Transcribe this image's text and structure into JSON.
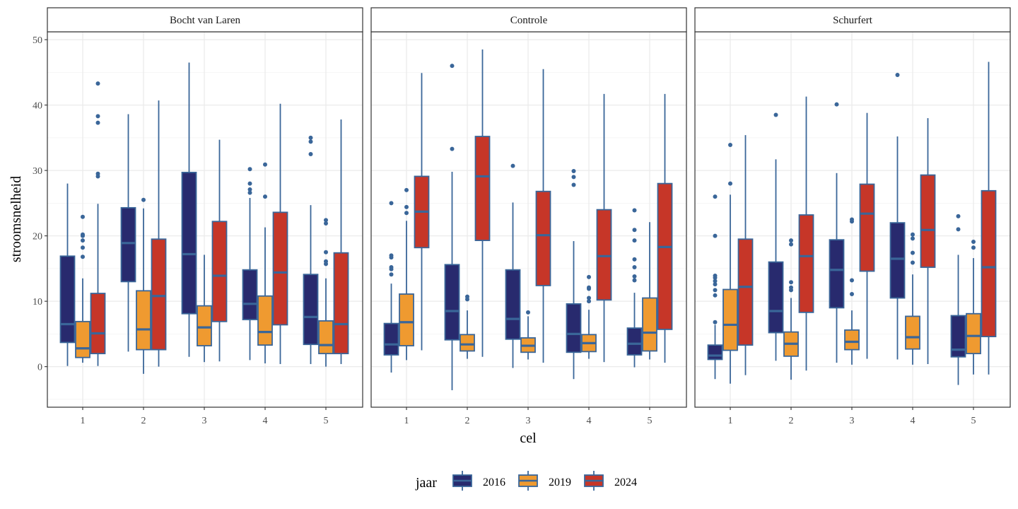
{
  "chart_data": {
    "type": "boxplot",
    "xlabel": "cel",
    "ylabel": "stroomsnelheid",
    "ylim": [
      -6.2,
      51.2
    ],
    "yticks": [
      0,
      10,
      20,
      30,
      40,
      50
    ],
    "xticks": [
      "1",
      "2",
      "3",
      "4",
      "5"
    ],
    "grid": true,
    "legend": {
      "title": "jaar",
      "position": "bottom",
      "entries": [
        "2016",
        "2019",
        "2024"
      ]
    },
    "colors": {
      "2016": "#282a6e",
      "2019": "#ef9a30",
      "2024": "#c63628",
      "outline": "#3a6699"
    },
    "box_format": [
      "whisker_low",
      "q1",
      "median",
      "q3",
      "whisker_high",
      "outliers"
    ],
    "facets": [
      {
        "title": "Bocht van Laren",
        "boxes": {
          "2016": [
            [
              0.1,
              3.7,
              6.5,
              16.9,
              28.0,
              []
            ],
            [
              2.3,
              13.0,
              18.9,
              24.3,
              38.6,
              []
            ],
            [
              1.5,
              8.1,
              17.2,
              29.7,
              46.5,
              []
            ],
            [
              1.0,
              7.2,
              9.6,
              14.8,
              25.8,
              [
                30.2,
                28.0,
                27.1,
                26.6
              ]
            ],
            [
              0.4,
              3.4,
              7.6,
              14.1,
              24.7,
              [
                35.0,
                34.4,
                32.5
              ]
            ]
          ],
          "2019": [
            [
              0.6,
              1.4,
              2.8,
              6.9,
              13.5,
              [
                22.9,
                20.2,
                20.0,
                19.3,
                18.2,
                16.8
              ]
            ],
            [
              -1.1,
              2.6,
              5.7,
              11.6,
              24.2,
              [
                25.5
              ]
            ],
            [
              0.7,
              3.2,
              6.0,
              9.3,
              17.1,
              []
            ],
            [
              0.5,
              3.3,
              5.3,
              10.8,
              21.3,
              [
                30.9,
                26.0
              ]
            ],
            [
              0.0,
              2.0,
              3.3,
              7.0,
              13.5,
              [
                22.4,
                21.9,
                17.5,
                16.1,
                15.7
              ]
            ]
          ],
          "2024": [
            [
              0.1,
              2.0,
              5.1,
              11.2,
              24.9,
              [
                43.3,
                38.3,
                37.3,
                29.5,
                29.1
              ]
            ],
            [
              0.0,
              2.6,
              10.8,
              19.5,
              40.7,
              []
            ],
            [
              0.8,
              6.9,
              13.9,
              22.2,
              34.7,
              []
            ],
            [
              0.4,
              6.4,
              14.4,
              23.6,
              40.2,
              []
            ],
            [
              0.4,
              2.0,
              6.5,
              17.4,
              37.8,
              []
            ]
          ]
        }
      },
      {
        "title": "Controle",
        "boxes": {
          "2016": [
            [
              -0.9,
              1.8,
              3.4,
              6.6,
              12.7,
              [
                25.0,
                17.0,
                16.7,
                15.2,
                14.9,
                14.1
              ]
            ],
            [
              -3.6,
              4.1,
              8.5,
              15.6,
              29.8,
              [
                46.0,
                33.3
              ]
            ],
            [
              -0.2,
              4.2,
              7.3,
              14.8,
              25.1,
              [
                30.7
              ]
            ],
            [
              -1.9,
              2.2,
              5.0,
              9.6,
              19.2,
              [
                29.9,
                29.0,
                27.8
              ]
            ],
            [
              -0.1,
              1.8,
              3.5,
              5.9,
              11.3,
              [
                23.9,
                20.9,
                19.3,
                16.4,
                15.2,
                13.8,
                13.2
              ]
            ]
          ],
          "2019": [
            [
              1.0,
              3.2,
              6.8,
              11.1,
              22.3,
              [
                27.0,
                24.4,
                23.5
              ]
            ],
            [
              1.2,
              2.4,
              3.4,
              4.9,
              8.6,
              [
                10.7,
                10.3
              ]
            ],
            [
              1.1,
              2.2,
              3.2,
              4.4,
              7.7,
              [
                8.3
              ]
            ],
            [
              1.2,
              2.3,
              3.6,
              4.9,
              8.7,
              [
                13.7,
                12.1,
                11.9,
                10.5,
                10.0
              ]
            ],
            [
              1.1,
              2.4,
              5.2,
              10.5,
              22.1,
              []
            ]
          ],
          "2024": [
            [
              2.5,
              18.2,
              23.7,
              29.1,
              44.9,
              []
            ],
            [
              1.5,
              19.3,
              29.1,
              35.2,
              48.5,
              []
            ],
            [
              0.6,
              12.4,
              20.1,
              26.8,
              45.5,
              []
            ],
            [
              0.7,
              10.2,
              16.9,
              24.0,
              41.7,
              []
            ],
            [
              0.6,
              5.7,
              18.3,
              28.0,
              41.7,
              []
            ]
          ]
        }
      },
      {
        "title": "Schurfert",
        "boxes": {
          "2016": [
            [
              -1.9,
              1.1,
              1.7,
              3.3,
              6.4,
              [
                26.0,
                20.0,
                13.9,
                13.6,
                13.1,
                12.6,
                11.7,
                10.9,
                6.8
              ]
            ],
            [
              0.9,
              5.2,
              8.5,
              16.0,
              31.7,
              [
                38.5
              ]
            ],
            [
              0.6,
              9.0,
              14.8,
              19.4,
              29.6,
              [
                40.1
              ]
            ],
            [
              1.1,
              10.5,
              16.5,
              22.0,
              35.2,
              [
                44.6
              ]
            ],
            [
              -2.8,
              1.5,
              2.6,
              7.8,
              17.1,
              [
                23.0,
                21.0
              ]
            ]
          ],
          "2019": [
            [
              -2.6,
              2.5,
              6.4,
              11.8,
              26.3,
              [
                33.9,
                28.0
              ]
            ],
            [
              -2.0,
              1.6,
              3.5,
              5.3,
              10.5,
              [
                19.3,
                18.7,
                12.9,
                12.1,
                11.7
              ]
            ],
            [
              0.3,
              2.6,
              3.8,
              5.6,
              8.6,
              [
                22.5,
                22.2,
                13.2,
                11.1
              ]
            ],
            [
              0.3,
              2.7,
              4.5,
              7.7,
              14.1,
              [
                20.2,
                19.6,
                17.4,
                15.9
              ]
            ],
            [
              -1.2,
              2.0,
              4.7,
              8.1,
              16.6,
              [
                19.1,
                18.2
              ]
            ]
          ],
          "2024": [
            [
              -1.3,
              3.3,
              12.2,
              19.5,
              35.4,
              []
            ],
            [
              -0.6,
              8.3,
              16.9,
              23.2,
              41.3,
              []
            ],
            [
              1.2,
              14.6,
              23.4,
              27.9,
              38.8,
              []
            ],
            [
              0.4,
              15.2,
              20.9,
              29.3,
              38.0,
              []
            ],
            [
              -1.2,
              4.6,
              15.2,
              26.9,
              46.6,
              []
            ]
          ]
        }
      }
    ]
  }
}
